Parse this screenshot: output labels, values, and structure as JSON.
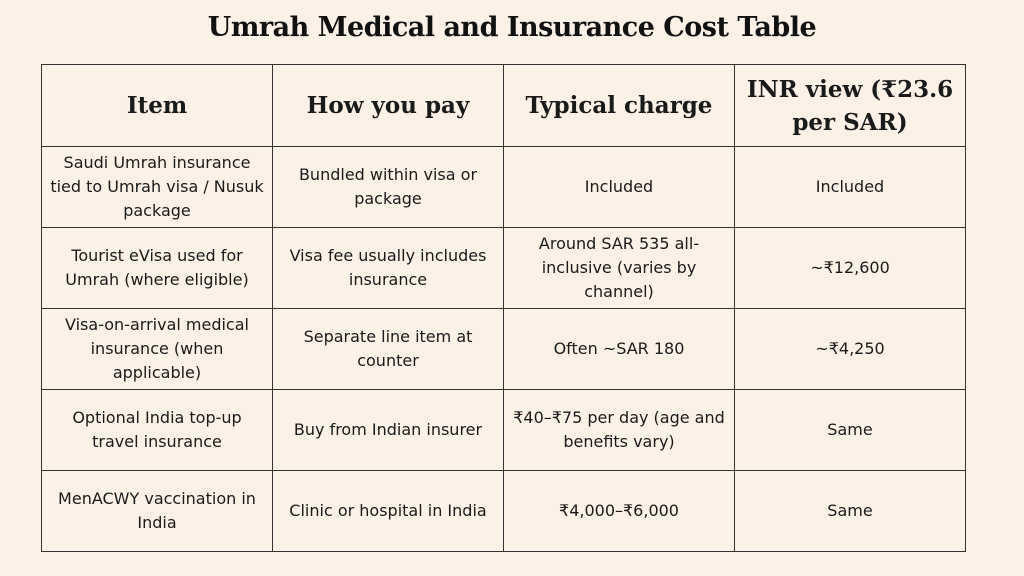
{
  "header": {
    "title": "Umrah Medical and Insurance Cost Table"
  },
  "table": {
    "columns": [
      "Item",
      "How you pay",
      "Typical charge",
      "INR view (₹23.6 per SAR)"
    ],
    "rows": [
      [
        "Saudi Umrah insurance tied to Umrah visa / Nusuk package",
        "Bundled within visa or package",
        "Included",
        "Included"
      ],
      [
        "Tourist eVisa used for Umrah (where eligible)",
        "Visa fee usually includes insurance",
        "Around SAR 535 all-inclusive (varies by channel)",
        "~₹12,600"
      ],
      [
        "Visa-on-arrival medical insurance (when applicable)",
        "Separate line item at counter",
        "Often ~SAR 180",
        "~₹4,250"
      ],
      [
        "Optional India top-up travel insurance",
        "Buy from Indian insurer",
        "₹40–₹75 per day (age and benefits vary)",
        "Same"
      ],
      [
        "MenACWY vaccination in India",
        "Clinic or hospital in India",
        "₹4,000–₹6,000",
        "Same"
      ]
    ]
  }
}
